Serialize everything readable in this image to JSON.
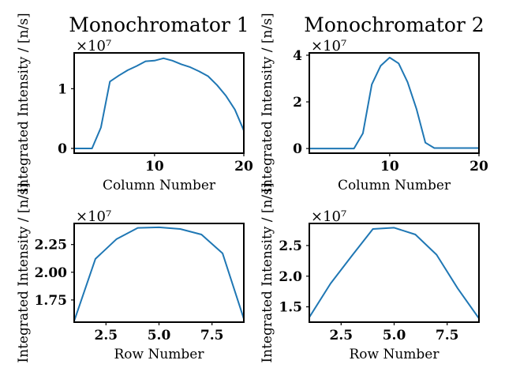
{
  "chart_data": [
    {
      "type": "line",
      "title": "Monochromator 1",
      "xlabel": "Column Number",
      "ylabel": "Integrated Intensity / [n/s]",
      "y_multiplier": "×10⁷",
      "xlim": [
        1,
        20
      ],
      "ylim": [
        -0.08,
        1.6
      ],
      "xticks": [
        10,
        20
      ],
      "yticks": [
        0,
        1
      ],
      "xtick_labels": [
        "10",
        "20"
      ],
      "ytick_labels": [
        "0",
        "1"
      ],
      "series": [
        {
          "x": [
            1,
            2,
            3,
            4,
            5,
            6,
            7,
            8,
            9,
            10,
            11,
            12,
            13,
            14,
            15,
            16,
            17,
            18,
            19,
            20
          ],
          "values": [
            0,
            0,
            0,
            0.35,
            1.12,
            1.22,
            1.31,
            1.38,
            1.46,
            1.47,
            1.51,
            1.47,
            1.41,
            1.36,
            1.29,
            1.21,
            1.06,
            0.88,
            0.65,
            0.3
          ]
        }
      ]
    },
    {
      "type": "line",
      "title": "Monochromator 2",
      "xlabel": "Column Number",
      "ylabel": "Integrated Intensity / [n/s]",
      "y_multiplier": "×10⁷",
      "xlim": [
        1,
        20
      ],
      "ylim": [
        -0.2,
        4.1
      ],
      "xticks": [
        10,
        20
      ],
      "yticks": [
        0,
        2,
        4
      ],
      "xtick_labels": [
        "10",
        "20"
      ],
      "ytick_labels": [
        "0",
        "2",
        "4"
      ],
      "series": [
        {
          "x": [
            1,
            2,
            3,
            4,
            5,
            6,
            7,
            8,
            9,
            10,
            11,
            12,
            13,
            14,
            15,
            16,
            17,
            18,
            19,
            20
          ],
          "values": [
            0,
            0,
            0,
            0,
            0,
            0,
            0.65,
            2.75,
            3.55,
            3.9,
            3.65,
            2.85,
            1.7,
            0.25,
            0.02,
            0.02,
            0.02,
            0.02,
            0.02,
            0.02
          ]
        }
      ]
    },
    {
      "type": "line",
      "title": "",
      "xlabel": "Row Number",
      "ylabel": "Integrated Intensity / [n/s]",
      "y_multiplier": "×10⁷",
      "xlim": [
        1,
        9
      ],
      "ylim": [
        1.55,
        2.44
      ],
      "xticks": [
        2.5,
        5.0,
        7.5
      ],
      "yticks": [
        1.75,
        2.0,
        2.25
      ],
      "xtick_labels": [
        "2.5",
        "5.0",
        "7.5"
      ],
      "ytick_labels": [
        "1.75",
        "2.00",
        "2.25"
      ],
      "series": [
        {
          "x": [
            1,
            2,
            3,
            4,
            5,
            6,
            7,
            8,
            9
          ],
          "values": [
            1.56,
            2.12,
            2.3,
            2.4,
            2.405,
            2.39,
            2.34,
            2.17,
            1.58
          ]
        }
      ]
    },
    {
      "type": "line",
      "title": "",
      "xlabel": "Row Number",
      "ylabel": "Integrated Intensity / [n/s]",
      "y_multiplier": "×10⁷",
      "xlim": [
        1,
        9
      ],
      "ylim": [
        1.25,
        2.86
      ],
      "xticks": [
        2.5,
        5.0,
        7.5
      ],
      "yticks": [
        1.5,
        2.0,
        2.5
      ],
      "xtick_labels": [
        "2.5",
        "5.0",
        "7.5"
      ],
      "ytick_labels": [
        "1.5",
        "2.0",
        "2.5"
      ],
      "series": [
        {
          "x": [
            1,
            2,
            3,
            4,
            5,
            6,
            7,
            8,
            9
          ],
          "values": [
            1.33,
            1.88,
            2.33,
            2.77,
            2.79,
            2.68,
            2.35,
            1.8,
            1.31
          ]
        }
      ]
    }
  ]
}
